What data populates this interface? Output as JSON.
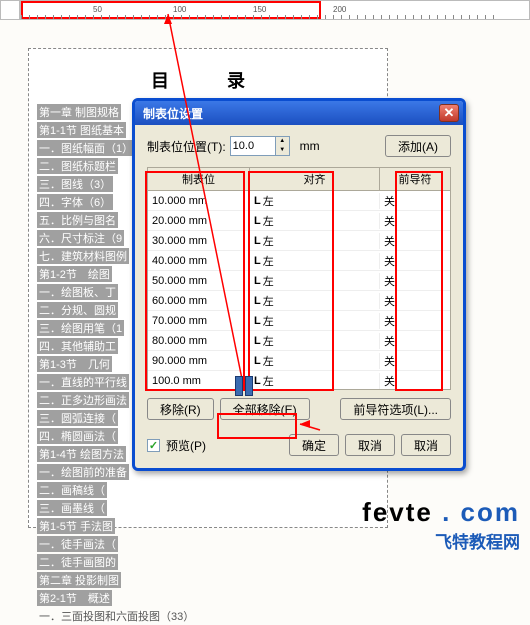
{
  "ruler": {
    "highlight_width": 300,
    "marks": [
      50,
      100,
      150,
      200
    ]
  },
  "page": {
    "title": "目　录",
    "toc": [
      {
        "t": "第一章 制图规格",
        "h": true
      },
      {
        "t": "第1-1节 图纸基本",
        "h": true
      },
      {
        "t": "一．图纸幅面（1）",
        "h": true
      },
      {
        "t": "二．图纸标题栏",
        "h": true
      },
      {
        "t": "三．图线（3）",
        "h": true
      },
      {
        "t": "四．字体（6）",
        "h": true
      },
      {
        "t": "五．比例与图名",
        "h": true
      },
      {
        "t": "六．尺寸标注（9",
        "h": true
      },
      {
        "t": "七．建筑材料图例",
        "h": true
      },
      {
        "t": "第1-2节　绘图",
        "h": true
      },
      {
        "t": "一．绘图板、丁",
        "h": true
      },
      {
        "t": "二．分规、圆规",
        "h": true
      },
      {
        "t": "三．绘图用笔（1",
        "h": true
      },
      {
        "t": "四．其他辅助工",
        "h": true
      },
      {
        "t": "第1-3节　几何",
        "h": true
      },
      {
        "t": "一．直线的平行线",
        "h": true
      },
      {
        "t": "二．正多边形画法",
        "h": true
      },
      {
        "t": "三．圆弧连接（",
        "h": true
      },
      {
        "t": "四．椭圆画法（",
        "h": true
      },
      {
        "t": "第1-4节 绘图方法",
        "h": true
      },
      {
        "t": "一．绘图前的准备",
        "h": true
      },
      {
        "t": "二．画稿线（",
        "h": true
      },
      {
        "t": "三．画墨线（",
        "h": true
      },
      {
        "t": "第1-5节 手法图",
        "h": true
      },
      {
        "t": "一．徒手画法（",
        "h": true
      },
      {
        "t": "二．徒手画图的",
        "h": true
      },
      {
        "t": "第二章 投影制图",
        "h": true
      },
      {
        "t": "第2-1节　概述",
        "h": true
      },
      {
        "t": "一．三面投图和六面投图（33）",
        "h": false
      }
    ]
  },
  "dialog": {
    "title": "制表位设置",
    "pos_label": "制表位位置(T):",
    "pos_value": "10.0",
    "unit": "mm",
    "add_btn": "添加(A)",
    "columns": {
      "pos": "制表位",
      "align": "对齐",
      "lead": "前导符"
    },
    "rows": [
      {
        "pos": "10.000 mm",
        "align": "左",
        "lead": "关"
      },
      {
        "pos": "20.000 mm",
        "align": "左",
        "lead": "关"
      },
      {
        "pos": "30.000 mm",
        "align": "左",
        "lead": "关"
      },
      {
        "pos": "40.000 mm",
        "align": "左",
        "lead": "关"
      },
      {
        "pos": "50.000 mm",
        "align": "左",
        "lead": "关"
      },
      {
        "pos": "60.000 mm",
        "align": "左",
        "lead": "关"
      },
      {
        "pos": "70.000 mm",
        "align": "左",
        "lead": "关"
      },
      {
        "pos": "80.000 mm",
        "align": "左",
        "lead": "关"
      },
      {
        "pos": "90.000 mm",
        "align": "左",
        "lead": "关"
      },
      {
        "pos": "100.0 mm",
        "align": "左",
        "lead": "关"
      }
    ],
    "remove_btn": "移除(R)",
    "remove_all_btn": "全部移除(E)",
    "leader_opts_btn": "前导符选项(L)...",
    "preview_chk": "预览(P)",
    "ok_btn": "确定",
    "cancel_btn": "取消",
    "cancel2_btn": "取消",
    "align_icon": "L"
  },
  "logo": {
    "lat": "fevte",
    "dot": " . ",
    "com": "com",
    "cn": "飞特教程网"
  }
}
